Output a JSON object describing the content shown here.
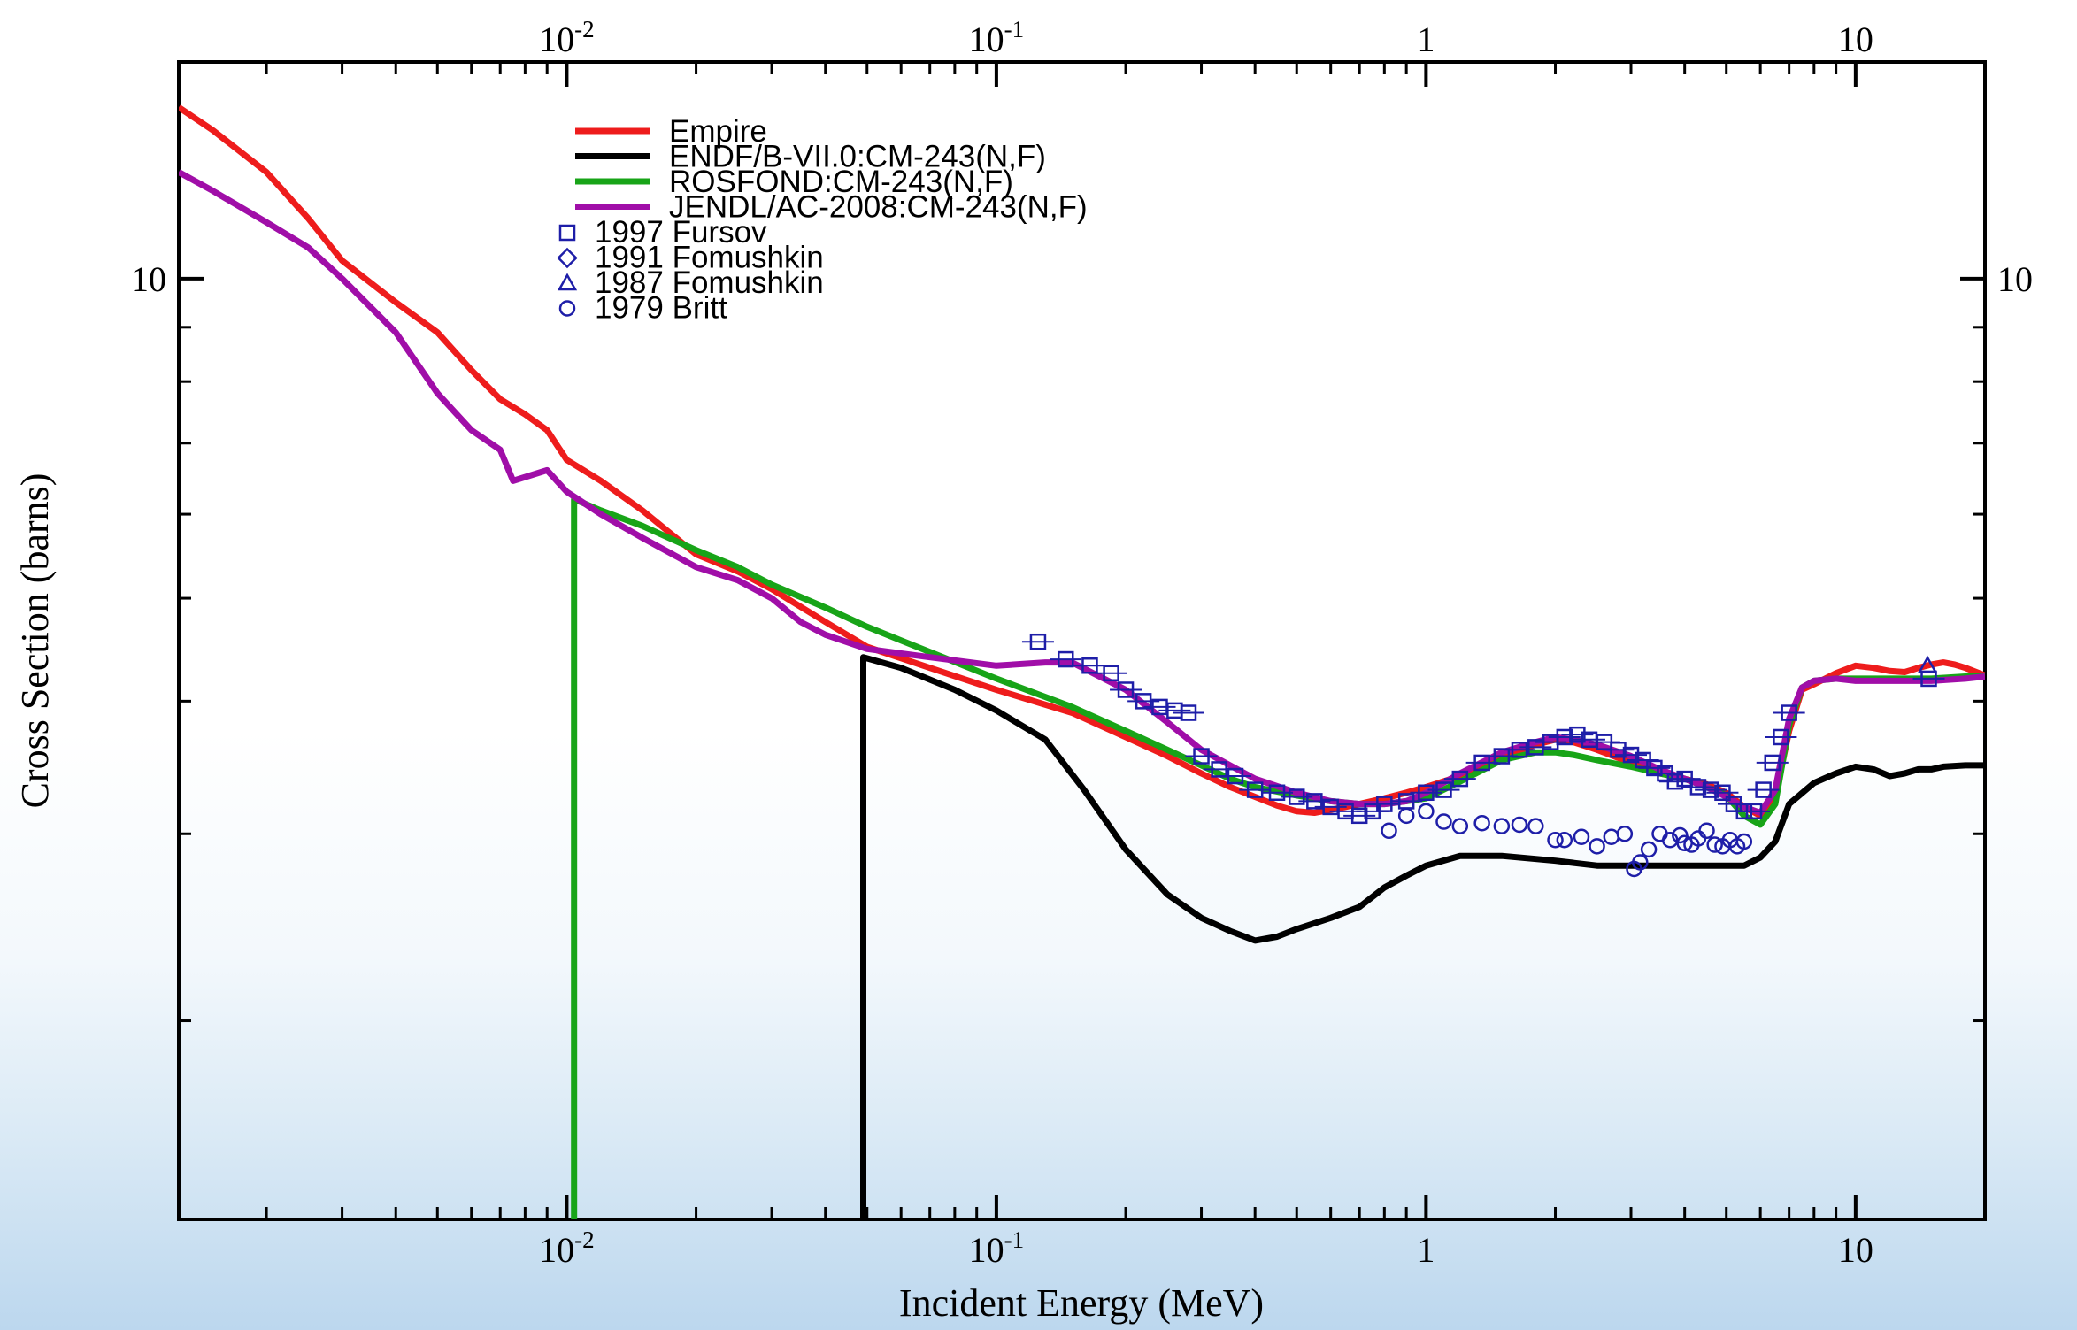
{
  "chart_data": {
    "type": "line",
    "xlabel": "Incident Energy (MeV)",
    "ylabel": "Cross Section (barns)",
    "x_scale": "log",
    "y_scale": "log",
    "xlim": [
      0.00125,
      20
    ],
    "ylim": [
      1.3,
      16
    ],
    "x_ticks": [
      {
        "value": 0.01,
        "base": "10",
        "exp": "-2"
      },
      {
        "value": 0.1,
        "base": "10",
        "exp": "-1"
      },
      {
        "value": 1,
        "base": "1",
        "exp": ""
      },
      {
        "value": 10,
        "base": "10",
        "exp": ""
      }
    ],
    "y_ticks": [
      {
        "value": 10,
        "label": "10"
      }
    ],
    "legend_position": "top-left",
    "grid": false,
    "series": [
      {
        "name": "Empire",
        "color": "#ee1c1c",
        "style": "line",
        "x": [
          0.00125,
          0.0015,
          0.002,
          0.0025,
          0.003,
          0.004,
          0.005,
          0.006,
          0.007,
          0.008,
          0.009,
          0.01,
          0.012,
          0.015,
          0.02,
          0.025,
          0.03,
          0.04,
          0.05,
          0.07,
          0.1,
          0.15,
          0.2,
          0.25,
          0.3,
          0.35,
          0.4,
          0.45,
          0.5,
          0.55,
          0.6,
          0.7,
          0.8,
          0.9,
          1.0,
          1.2,
          1.4,
          1.6,
          1.8,
          2.0,
          2.2,
          2.5,
          3.0,
          3.5,
          4.0,
          4.5,
          5.0,
          5.5,
          6.0,
          6.5,
          7.0,
          7.5,
          8.0,
          9.0,
          10.0,
          11,
          12,
          13,
          14,
          15,
          16,
          17,
          18,
          20
        ],
        "y": [
          14.5,
          13.8,
          12.6,
          11.4,
          10.4,
          9.5,
          8.9,
          8.2,
          7.7,
          7.45,
          7.2,
          6.75,
          6.45,
          6.05,
          5.5,
          5.3,
          5.1,
          4.75,
          4.5,
          4.3,
          4.1,
          3.9,
          3.7,
          3.55,
          3.42,
          3.32,
          3.25,
          3.19,
          3.15,
          3.14,
          3.16,
          3.2,
          3.24,
          3.28,
          3.32,
          3.4,
          3.5,
          3.58,
          3.64,
          3.68,
          3.66,
          3.6,
          3.5,
          3.42,
          3.38,
          3.34,
          3.28,
          3.18,
          3.12,
          3.25,
          3.75,
          4.1,
          4.15,
          4.25,
          4.32,
          4.3,
          4.27,
          4.26,
          4.3,
          4.33,
          4.35,
          4.33,
          4.3,
          4.23
        ]
      },
      {
        "name": "ENDF/B-VII.0:CM-243(N,F)",
        "color": "#000000",
        "style": "line",
        "x": [
          0.049,
          0.049,
          0.06,
          0.08,
          0.1,
          0.13,
          0.16,
          0.2,
          0.25,
          0.3,
          0.35,
          0.4,
          0.45,
          0.5,
          0.6,
          0.7,
          0.8,
          0.9,
          1.0,
          1.2,
          1.5,
          2.0,
          2.5,
          3.0,
          4.0,
          5.0,
          5.5,
          6.0,
          6.5,
          7.0,
          8.0,
          9.0,
          10.0,
          11,
          12,
          13,
          14,
          15,
          16,
          18,
          20
        ],
        "y": [
          1.3,
          4.4,
          4.3,
          4.1,
          3.92,
          3.68,
          3.3,
          2.9,
          2.63,
          2.5,
          2.43,
          2.38,
          2.4,
          2.44,
          2.5,
          2.56,
          2.67,
          2.74,
          2.8,
          2.86,
          2.86,
          2.83,
          2.8,
          2.8,
          2.8,
          2.8,
          2.8,
          2.85,
          2.95,
          3.2,
          3.35,
          3.42,
          3.47,
          3.45,
          3.4,
          3.42,
          3.45,
          3.45,
          3.47,
          3.48,
          3.48
        ]
      },
      {
        "name": "ROSFOND:CM-243(N,F)",
        "color": "#18a418",
        "style": "line",
        "x": [
          0.0104,
          0.0104,
          0.012,
          0.015,
          0.02,
          0.025,
          0.03,
          0.04,
          0.05,
          0.07,
          0.1,
          0.15,
          0.2,
          0.25,
          0.3,
          0.35,
          0.4,
          0.5,
          0.6,
          0.7,
          0.8,
          0.9,
          1.0,
          1.2,
          1.5,
          1.8,
          2.0,
          2.2,
          2.5,
          3.0,
          3.5,
          4.0,
          4.5,
          5.0,
          5.5,
          6.0,
          6.5,
          7.0,
          7.5,
          8.0,
          9,
          10,
          12,
          15,
          18,
          20
        ],
        "y": [
          1.3,
          6.2,
          6.05,
          5.85,
          5.55,
          5.35,
          5.15,
          4.9,
          4.7,
          4.45,
          4.2,
          3.95,
          3.75,
          3.6,
          3.48,
          3.38,
          3.32,
          3.26,
          3.22,
          3.2,
          3.2,
          3.22,
          3.24,
          3.36,
          3.52,
          3.58,
          3.58,
          3.56,
          3.52,
          3.47,
          3.42,
          3.38,
          3.32,
          3.26,
          3.12,
          3.06,
          3.2,
          3.8,
          4.12,
          4.18,
          4.2,
          4.2,
          4.2,
          4.2,
          4.22,
          4.22
        ]
      },
      {
        "name": "JENDL/AC-2008:CM-243(N,F)",
        "color": "#a00ea8",
        "style": "line",
        "x": [
          0.00125,
          0.0015,
          0.002,
          0.0025,
          0.003,
          0.004,
          0.005,
          0.006,
          0.007,
          0.0075,
          0.009,
          0.01,
          0.012,
          0.015,
          0.02,
          0.025,
          0.03,
          0.035,
          0.04,
          0.05,
          0.07,
          0.1,
          0.13,
          0.15,
          0.2,
          0.25,
          0.3,
          0.35,
          0.4,
          0.5,
          0.6,
          0.7,
          0.8,
          0.9,
          1.0,
          1.2,
          1.5,
          1.8,
          2.0,
          2.2,
          2.5,
          3.0,
          3.5,
          4.0,
          4.5,
          5.0,
          5.5,
          6.0,
          6.5,
          7.0,
          7.5,
          8.0,
          9,
          10,
          12,
          15,
          18,
          20
        ],
        "y": [
          12.6,
          12.1,
          11.3,
          10.7,
          10.0,
          8.9,
          7.8,
          7.2,
          6.9,
          6.45,
          6.6,
          6.3,
          6.0,
          5.7,
          5.35,
          5.2,
          5.0,
          4.75,
          4.62,
          4.48,
          4.4,
          4.32,
          4.35,
          4.35,
          4.1,
          3.82,
          3.6,
          3.48,
          3.38,
          3.28,
          3.22,
          3.2,
          3.2,
          3.22,
          3.28,
          3.42,
          3.58,
          3.66,
          3.7,
          3.68,
          3.64,
          3.55,
          3.45,
          3.38,
          3.32,
          3.25,
          3.18,
          3.14,
          3.3,
          3.85,
          4.12,
          4.18,
          4.2,
          4.18,
          4.18,
          4.18,
          4.2,
          4.22
        ]
      },
      {
        "name": "1997 Fursov",
        "color": "#1e1ea8",
        "style": "square",
        "x": [
          0.125,
          0.145,
          0.165,
          0.185,
          0.2,
          0.22,
          0.24,
          0.26,
          0.28,
          0.3,
          0.33,
          0.36,
          0.4,
          0.45,
          0.5,
          0.55,
          0.6,
          0.65,
          0.7,
          0.75,
          0.8,
          0.9,
          1.0,
          1.1,
          1.2,
          1.35,
          1.5,
          1.65,
          1.8,
          1.95,
          2.1,
          2.25,
          2.4,
          2.6,
          2.8,
          3.0,
          3.2,
          3.4,
          3.6,
          3.8,
          4.0,
          4.3,
          4.6,
          4.9,
          5.2,
          5.5,
          5.8,
          6.1,
          6.4,
          6.7,
          7.0,
          14.8
        ],
        "y": [
          4.55,
          4.38,
          4.32,
          4.25,
          4.1,
          4.0,
          3.95,
          3.92,
          3.9,
          3.55,
          3.45,
          3.4,
          3.3,
          3.28,
          3.25,
          3.22,
          3.18,
          3.15,
          3.12,
          3.15,
          3.2,
          3.22,
          3.28,
          3.3,
          3.38,
          3.5,
          3.55,
          3.6,
          3.62,
          3.66,
          3.7,
          3.72,
          3.68,
          3.66,
          3.6,
          3.56,
          3.52,
          3.46,
          3.42,
          3.36,
          3.38,
          3.32,
          3.3,
          3.28,
          3.2,
          3.15,
          3.15,
          3.3,
          3.5,
          3.7,
          3.9,
          4.2
        ]
      },
      {
        "name": "1991 Fomushkin",
        "color": "#1e1ea8",
        "style": "diamond",
        "x": [],
        "y": []
      },
      {
        "name": "1987 Fomushkin",
        "color": "#1e1ea8",
        "style": "triangle",
        "x": [
          14.7
        ],
        "y": [
          4.32
        ]
      },
      {
        "name": "1979 Britt",
        "color": "#1e1ea8",
        "style": "circle",
        "x": [
          0.82,
          0.9,
          1.0,
          1.1,
          1.2,
          1.35,
          1.5,
          1.65,
          1.8,
          2.0,
          2.1,
          2.3,
          2.5,
          2.7,
          2.9,
          3.05,
          3.15,
          3.3,
          3.5,
          3.7,
          3.9,
          4.0,
          4.15,
          4.3,
          4.5,
          4.7,
          4.9,
          5.1,
          5.3,
          5.5
        ],
        "y": [
          3.02,
          3.12,
          3.15,
          3.08,
          3.05,
          3.07,
          3.05,
          3.06,
          3.05,
          2.96,
          2.96,
          2.98,
          2.92,
          2.98,
          3.0,
          2.78,
          2.82,
          2.9,
          3.0,
          2.96,
          2.99,
          2.94,
          2.93,
          2.97,
          3.02,
          2.93,
          2.92,
          2.96,
          2.92,
          2.95
        ]
      }
    ]
  }
}
